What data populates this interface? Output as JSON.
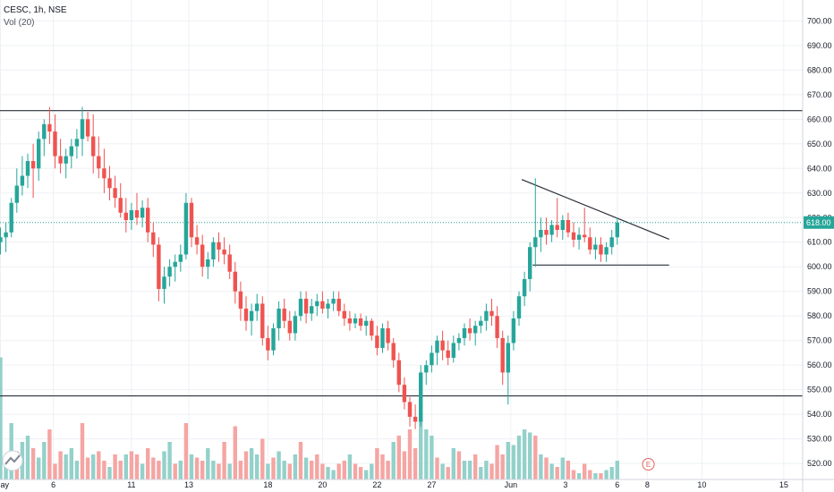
{
  "legend": {
    "symbol": "CESC, 1h, NSE",
    "volume": "Vol (20)"
  },
  "colors": {
    "up": "#26a69a",
    "down": "#ef5350",
    "vol_up": "#93d1ca",
    "vol_down": "#f5a5a3",
    "grid": "#eef0f4",
    "line": "#2a2e39",
    "price_line": "#26a69a",
    "price_tag": "#26a69a",
    "event": "#e2635d"
  },
  "event_marker": "E",
  "chart_data": {
    "type": "candlestick",
    "title": "",
    "y_ticks": [
      "520.00",
      "530.00",
      "540.00",
      "550.00",
      "560.00",
      "570.00",
      "580.00",
      "590.00",
      "600.00",
      "610.00",
      "620.00",
      "630.00",
      "640.00",
      "650.00",
      "660.00",
      "670.00",
      "680.00",
      "690.00",
      "700.00"
    ],
    "x_ticks": [
      "ay",
      "6",
      "11",
      "13",
      "18",
      "20",
      "22",
      "27",
      "Jun",
      "3",
      "6",
      "8",
      "10",
      "15"
    ],
    "ylim": [
      513.5,
      708.5
    ],
    "last_price": "618.00",
    "last_value": 618,
    "horizontal_levels": [
      663.5,
      547.5,
      600.7
    ],
    "trendline": {
      "from": [
        "Jun",
        635.5
      ],
      "to": [
        "10",
        611.2
      ]
    },
    "grid": true,
    "candles": [
      [
        610,
        616,
        605,
        612
      ],
      [
        612,
        618,
        606,
        614
      ],
      [
        614,
        628,
        612,
        626
      ],
      [
        626,
        640,
        622,
        633
      ],
      [
        633,
        645,
        629,
        637
      ],
      [
        637,
        646,
        632,
        643
      ],
      [
        643,
        650,
        628,
        640
      ],
      [
        640,
        655,
        635,
        652
      ],
      [
        652,
        660,
        645,
        658
      ],
      [
        658,
        665,
        650,
        655
      ],
      [
        655,
        662,
        640,
        645
      ],
      [
        645,
        652,
        638,
        642
      ],
      [
        642,
        648,
        636,
        645
      ],
      [
        645,
        652,
        640,
        649
      ],
      [
        649,
        656,
        644,
        652
      ],
      [
        652,
        665,
        645,
        660
      ],
      [
        660,
        663,
        651,
        653
      ],
      [
        653,
        662,
        638,
        645
      ],
      [
        645,
        653,
        636,
        640
      ],
      [
        640,
        648,
        630,
        636
      ],
      [
        636,
        641,
        627,
        632
      ],
      [
        632,
        637,
        624,
        628
      ],
      [
        628,
        634,
        620,
        622
      ],
      [
        622,
        628,
        614,
        619
      ],
      [
        619,
        626,
        615,
        623
      ],
      [
        623,
        630,
        617,
        620
      ],
      [
        620,
        627,
        616,
        624
      ],
      [
        624,
        628,
        610,
        614
      ],
      [
        614,
        618,
        604,
        609
      ],
      [
        609,
        612,
        586,
        591
      ],
      [
        591,
        600,
        585,
        596
      ],
      [
        596,
        603,
        592,
        600
      ],
      [
        600,
        605,
        594,
        602
      ],
      [
        602,
        609,
        598,
        605
      ],
      [
        605,
        630,
        603,
        626
      ],
      [
        626,
        628,
        608,
        612
      ],
      [
        612,
        617,
        605,
        609
      ],
      [
        609,
        613,
        596,
        600
      ],
      [
        600,
        606,
        595,
        603
      ],
      [
        603,
        612,
        600,
        610
      ],
      [
        610,
        614,
        602,
        607
      ],
      [
        607,
        612,
        601,
        605
      ],
      [
        605,
        609,
        595,
        598
      ],
      [
        598,
        602,
        585,
        590
      ],
      [
        590,
        594,
        578,
        583
      ],
      [
        583,
        588,
        574,
        578
      ],
      [
        578,
        585,
        572,
        582
      ],
      [
        582,
        589,
        578,
        585
      ],
      [
        585,
        588,
        568,
        571
      ],
      [
        571,
        576,
        562,
        566
      ],
      [
        566,
        577,
        564,
        575
      ],
      [
        575,
        586,
        570,
        583
      ],
      [
        583,
        587,
        575,
        578
      ],
      [
        578,
        582,
        570,
        573
      ],
      [
        573,
        582,
        570,
        580
      ],
      [
        580,
        590,
        578,
        587
      ],
      [
        587,
        590,
        577,
        581
      ],
      [
        581,
        587,
        578,
        584
      ],
      [
        584,
        589,
        580,
        586
      ],
      [
        586,
        590,
        581,
        583
      ],
      [
        583,
        587,
        579,
        585
      ],
      [
        585,
        590,
        582,
        587
      ],
      [
        587,
        590,
        580,
        582
      ],
      [
        582,
        585,
        576,
        579
      ],
      [
        579,
        582,
        574,
        577
      ],
      [
        577,
        581,
        575,
        579
      ],
      [
        579,
        581,
        574,
        576
      ],
      [
        576,
        580,
        572,
        578
      ],
      [
        578,
        579,
        570,
        572
      ],
      [
        572,
        576,
        564,
        567
      ],
      [
        567,
        577,
        565,
        575
      ],
      [
        575,
        578,
        566,
        569
      ],
      [
        569,
        571,
        559,
        562
      ],
      [
        562,
        565,
        549,
        552
      ],
      [
        552,
        555,
        542,
        545
      ],
      [
        545,
        547,
        535,
        539
      ],
      [
        539,
        544,
        534,
        537
      ],
      [
        537,
        560,
        535,
        557
      ],
      [
        557,
        562,
        552,
        560
      ],
      [
        560,
        568,
        557,
        565
      ],
      [
        565,
        572,
        560,
        570
      ],
      [
        570,
        574,
        562,
        566
      ],
      [
        566,
        570,
        560,
        563
      ],
      [
        563,
        572,
        561,
        569
      ],
      [
        569,
        573,
        566,
        571
      ],
      [
        571,
        577,
        568,
        575
      ],
      [
        575,
        579,
        570,
        573
      ],
      [
        573,
        578,
        568,
        576
      ],
      [
        576,
        580,
        573,
        578
      ],
      [
        578,
        585,
        574,
        582
      ],
      [
        582,
        587,
        576,
        580
      ],
      [
        580,
        584,
        567,
        571
      ],
      [
        571,
        574,
        552,
        557
      ],
      [
        557,
        572,
        544,
        569
      ],
      [
        569,
        582,
        566,
        579
      ],
      [
        579,
        590,
        576,
        588
      ],
      [
        588,
        598,
        584,
        595
      ],
      [
        595,
        610,
        590,
        608
      ],
      [
        608,
        636,
        600,
        612
      ],
      [
        612,
        620,
        606,
        615
      ],
      [
        615,
        620,
        609,
        613
      ],
      [
        613,
        619,
        610,
        617
      ],
      [
        617,
        628,
        612,
        615
      ],
      [
        615,
        621,
        611,
        619
      ],
      [
        619,
        622,
        612,
        614
      ],
      [
        614,
        618,
        608,
        611
      ],
      [
        611,
        616,
        607,
        613
      ],
      [
        613,
        624,
        610,
        612
      ],
      [
        612,
        616,
        605,
        607
      ],
      [
        607,
        612,
        603,
        609
      ],
      [
        609,
        612,
        602,
        605
      ],
      [
        605,
        610,
        602,
        608
      ],
      [
        608,
        615,
        605,
        612
      ],
      [
        612,
        620,
        609,
        618
      ]
    ],
    "volumes": [
      {
        "v": 39,
        "up": true
      },
      {
        "v": 7,
        "up": true
      },
      {
        "v": 18,
        "up": true
      },
      {
        "v": 9,
        "up": false
      },
      {
        "v": 12,
        "up": true
      },
      {
        "v": 14,
        "up": true
      },
      {
        "v": 10,
        "up": false
      },
      {
        "v": 7,
        "up": true
      },
      {
        "v": 12,
        "up": true
      },
      {
        "v": 16,
        "up": false
      },
      {
        "v": 5,
        "up": false
      },
      {
        "v": 9,
        "up": false
      },
      {
        "v": 8,
        "up": true
      },
      {
        "v": 10,
        "up": true
      },
      {
        "v": 6,
        "up": true
      },
      {
        "v": 18,
        "up": false
      },
      {
        "v": 7,
        "up": false
      },
      {
        "v": 8,
        "up": true
      },
      {
        "v": 9,
        "up": false
      },
      {
        "v": 6,
        "up": false
      },
      {
        "v": 4,
        "up": true
      },
      {
        "v": 8,
        "up": false
      },
      {
        "v": 6,
        "up": false
      },
      {
        "v": 8,
        "up": true
      },
      {
        "v": 9,
        "up": false
      },
      {
        "v": 8,
        "up": false
      },
      {
        "v": 5,
        "up": true
      },
      {
        "v": 10,
        "up": false
      },
      {
        "v": 7,
        "up": false
      },
      {
        "v": 6,
        "up": false
      },
      {
        "v": 9,
        "up": true
      },
      {
        "v": 12,
        "up": true
      },
      {
        "v": 5,
        "up": false
      },
      {
        "v": 6,
        "up": true
      },
      {
        "v": 18,
        "up": false
      },
      {
        "v": 8,
        "up": true
      },
      {
        "v": 7,
        "up": false
      },
      {
        "v": 6,
        "up": false
      },
      {
        "v": 10,
        "up": true
      },
      {
        "v": 6,
        "up": true
      },
      {
        "v": 5,
        "up": false
      },
      {
        "v": 12,
        "up": false
      },
      {
        "v": 5,
        "up": true
      },
      {
        "v": 17,
        "up": false
      },
      {
        "v": 6,
        "up": false
      },
      {
        "v": 9,
        "up": false
      },
      {
        "v": 10,
        "up": true
      },
      {
        "v": 8,
        "up": true
      },
      {
        "v": 13,
        "up": false
      },
      {
        "v": 5,
        "up": true
      },
      {
        "v": 7,
        "up": false
      },
      {
        "v": 9,
        "up": true
      },
      {
        "v": 6,
        "up": true
      },
      {
        "v": 5,
        "up": false
      },
      {
        "v": 8,
        "up": true
      },
      {
        "v": 12,
        "up": false
      },
      {
        "v": 7,
        "up": true
      },
      {
        "v": 6,
        "up": false
      },
      {
        "v": 8,
        "up": false
      },
      {
        "v": 5,
        "up": false
      },
      {
        "v": 4,
        "up": true
      },
      {
        "v": 3,
        "up": true
      },
      {
        "v": 5,
        "up": false
      },
      {
        "v": 6,
        "up": false
      },
      {
        "v": 8,
        "up": true
      },
      {
        "v": 5,
        "up": false
      },
      {
        "v": 4,
        "up": false
      },
      {
        "v": 3,
        "up": true
      },
      {
        "v": 5,
        "up": true
      },
      {
        "v": 10,
        "up": false
      },
      {
        "v": 8,
        "up": false
      },
      {
        "v": 6,
        "up": false
      },
      {
        "v": 12,
        "up": true
      },
      {
        "v": 14,
        "up": false
      },
      {
        "v": 9,
        "up": false
      },
      {
        "v": 16,
        "up": false
      },
      {
        "v": 10,
        "up": false
      },
      {
        "v": 22,
        "up": true
      },
      {
        "v": 16,
        "up": true
      },
      {
        "v": 14,
        "up": true
      },
      {
        "v": 7,
        "up": false
      },
      {
        "v": 5,
        "up": true
      },
      {
        "v": 4,
        "up": false
      },
      {
        "v": 10,
        "up": true
      },
      {
        "v": 9,
        "up": false
      },
      {
        "v": 6,
        "up": true
      },
      {
        "v": 6,
        "up": true
      },
      {
        "v": 8,
        "up": false
      },
      {
        "v": 4,
        "up": true
      },
      {
        "v": 6,
        "up": true
      },
      {
        "v": 5,
        "up": false
      },
      {
        "v": 11,
        "up": false
      },
      {
        "v": 8,
        "up": false
      },
      {
        "v": 12,
        "up": true
      },
      {
        "v": 11,
        "up": true
      },
      {
        "v": 14,
        "up": true
      },
      {
        "v": 16,
        "up": true
      },
      {
        "v": 15,
        "up": true
      },
      {
        "v": 14,
        "up": false
      },
      {
        "v": 8,
        "up": true
      },
      {
        "v": 7,
        "up": false
      },
      {
        "v": 5,
        "up": true
      },
      {
        "v": 4,
        "up": false
      },
      {
        "v": 7,
        "up": true
      },
      {
        "v": 6,
        "up": false
      },
      {
        "v": 3,
        "up": false
      },
      {
        "v": 2,
        "up": true
      },
      {
        "v": 5,
        "up": false
      },
      {
        "v": 3,
        "up": false
      },
      {
        "v": 2,
        "up": true
      },
      {
        "v": 2,
        "up": false
      },
      {
        "v": 3,
        "up": true
      },
      {
        "v": 4,
        "up": true
      },
      {
        "v": 6,
        "up": true
      }
    ]
  }
}
